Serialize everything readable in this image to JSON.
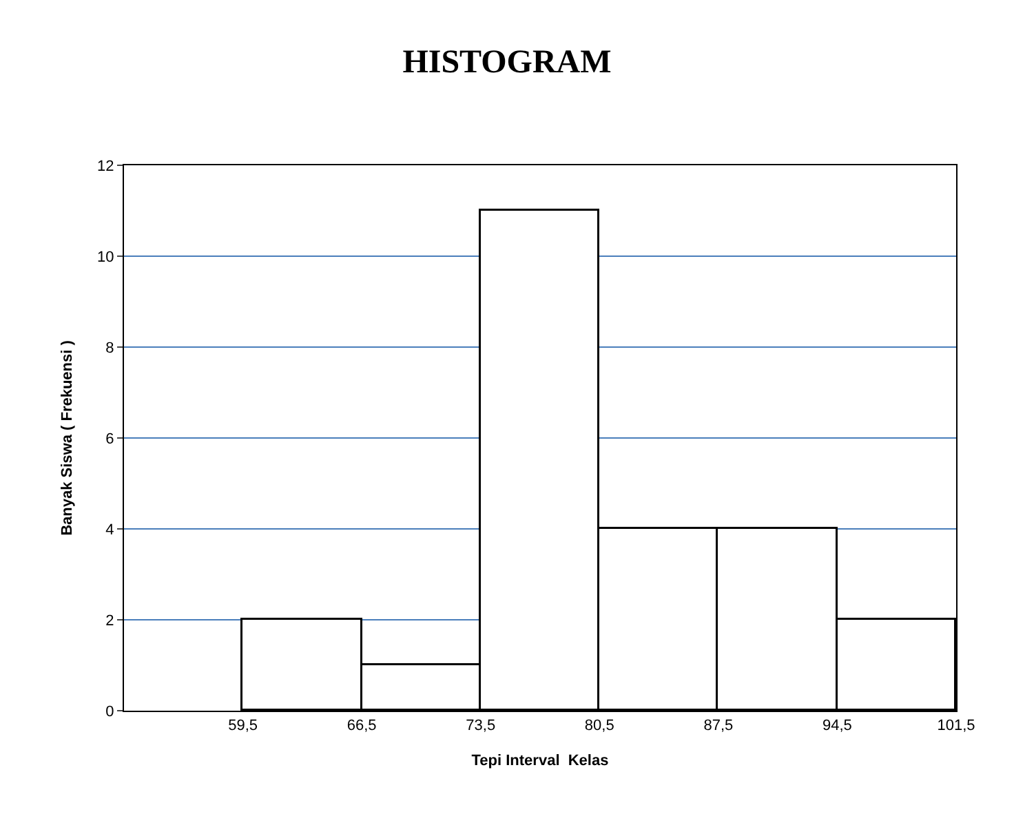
{
  "chart_data": {
    "type": "histogram",
    "title": "HISTOGRAM",
    "xlabel": "Tepi Interval  Kelas",
    "ylabel": "Banyak Siswa ( Frekuensi )",
    "bins": [
      59.5,
      66.5,
      73.5,
      80.5,
      87.5,
      94.5,
      101.5
    ],
    "values": [
      2,
      1,
      11,
      4,
      4,
      2
    ],
    "color": "#ffffff",
    "xlim": [
      52.5,
      101.5
    ],
    "xticks": [
      {
        "value": 59.5,
        "label": "59,5"
      },
      {
        "value": 66.5,
        "label": "66,5"
      },
      {
        "value": 73.5,
        "label": "73,5"
      },
      {
        "value": 80.5,
        "label": "80,5"
      },
      {
        "value": 87.5,
        "label": "87,5"
      },
      {
        "value": 94.5,
        "label": "94,5"
      },
      {
        "value": 101.5,
        "label": "101,5"
      }
    ],
    "ylim": [
      0,
      12
    ],
    "yticks": [
      0,
      2,
      4,
      6,
      8,
      10,
      12
    ],
    "grid": "y"
  }
}
